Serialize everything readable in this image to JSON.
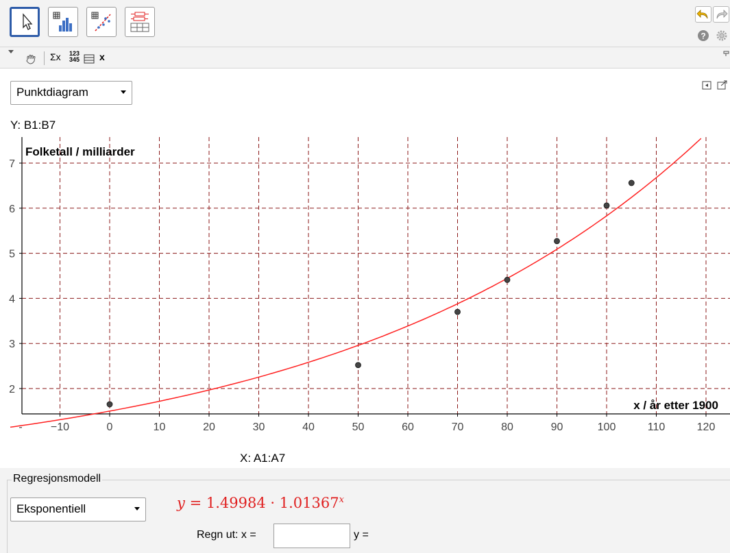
{
  "toolbar": {
    "tools": [
      {
        "name": "move-tool",
        "icon": "pointer-arrow-icon",
        "active": true
      },
      {
        "name": "one-variable-tool",
        "icon": "histogram-icon",
        "active": false
      },
      {
        "name": "two-variable-tool",
        "icon": "scatter-regression-icon",
        "active": false
      },
      {
        "name": "multi-variable-tool",
        "icon": "boxplots-icon",
        "active": false
      }
    ],
    "undo_icon": "undo-arrow-icon",
    "redo_icon": "redo-arrow-icon",
    "help_icon": "help-icon",
    "settings_icon": "gear-icon"
  },
  "subbar": {
    "sigma_label": "Σx",
    "digits_top": "123",
    "digits_bottom": "345",
    "x_label": "x"
  },
  "plot_type": {
    "selected": "Punktdiagram"
  },
  "y_source": "Y:  B1:B7",
  "x_source": "X:  A1:A7",
  "chart_data": {
    "type": "scatter",
    "title": "",
    "xlabel": "x / år etter 1900",
    "ylabel": "Folketall / milliarder",
    "xlim": [
      -17,
      122
    ],
    "ylim": [
      1.3,
      7.4
    ],
    "xticks": [
      "-",
      "−10",
      "0",
      "10",
      "20",
      "30",
      "40",
      "50",
      "60",
      "70",
      "80",
      "90",
      "100",
      "110",
      "120"
    ],
    "yticks": [
      "2",
      "3",
      "4",
      "5",
      "6",
      "7"
    ],
    "grid": true,
    "points": [
      {
        "x": 0,
        "y": 1.65
      },
      {
        "x": 50,
        "y": 2.52
      },
      {
        "x": 70,
        "y": 3.7
      },
      {
        "x": 80,
        "y": 4.41
      },
      {
        "x": 90,
        "y": 5.27
      },
      {
        "x": 100,
        "y": 6.06
      },
      {
        "x": 105,
        "y": 6.56
      }
    ],
    "regression": {
      "model": "exponential",
      "a": 1.49984,
      "b": 1.01367
    },
    "colors": {
      "grid": "#8b1a1a",
      "curve": "#ff2020",
      "points": "#444444",
      "axis": "#000000"
    }
  },
  "regression_panel": {
    "legend": "Regresjonsmodell",
    "model_selected": "Eksponentiell",
    "formula_lhs": "y",
    "formula_eq": "=",
    "formula_a": "1.49984",
    "formula_dot": "·",
    "formula_b": "1.01367",
    "formula_exp": "x",
    "compute_label": "Regn ut:  x =",
    "x_value": "",
    "y_label": "y ="
  }
}
